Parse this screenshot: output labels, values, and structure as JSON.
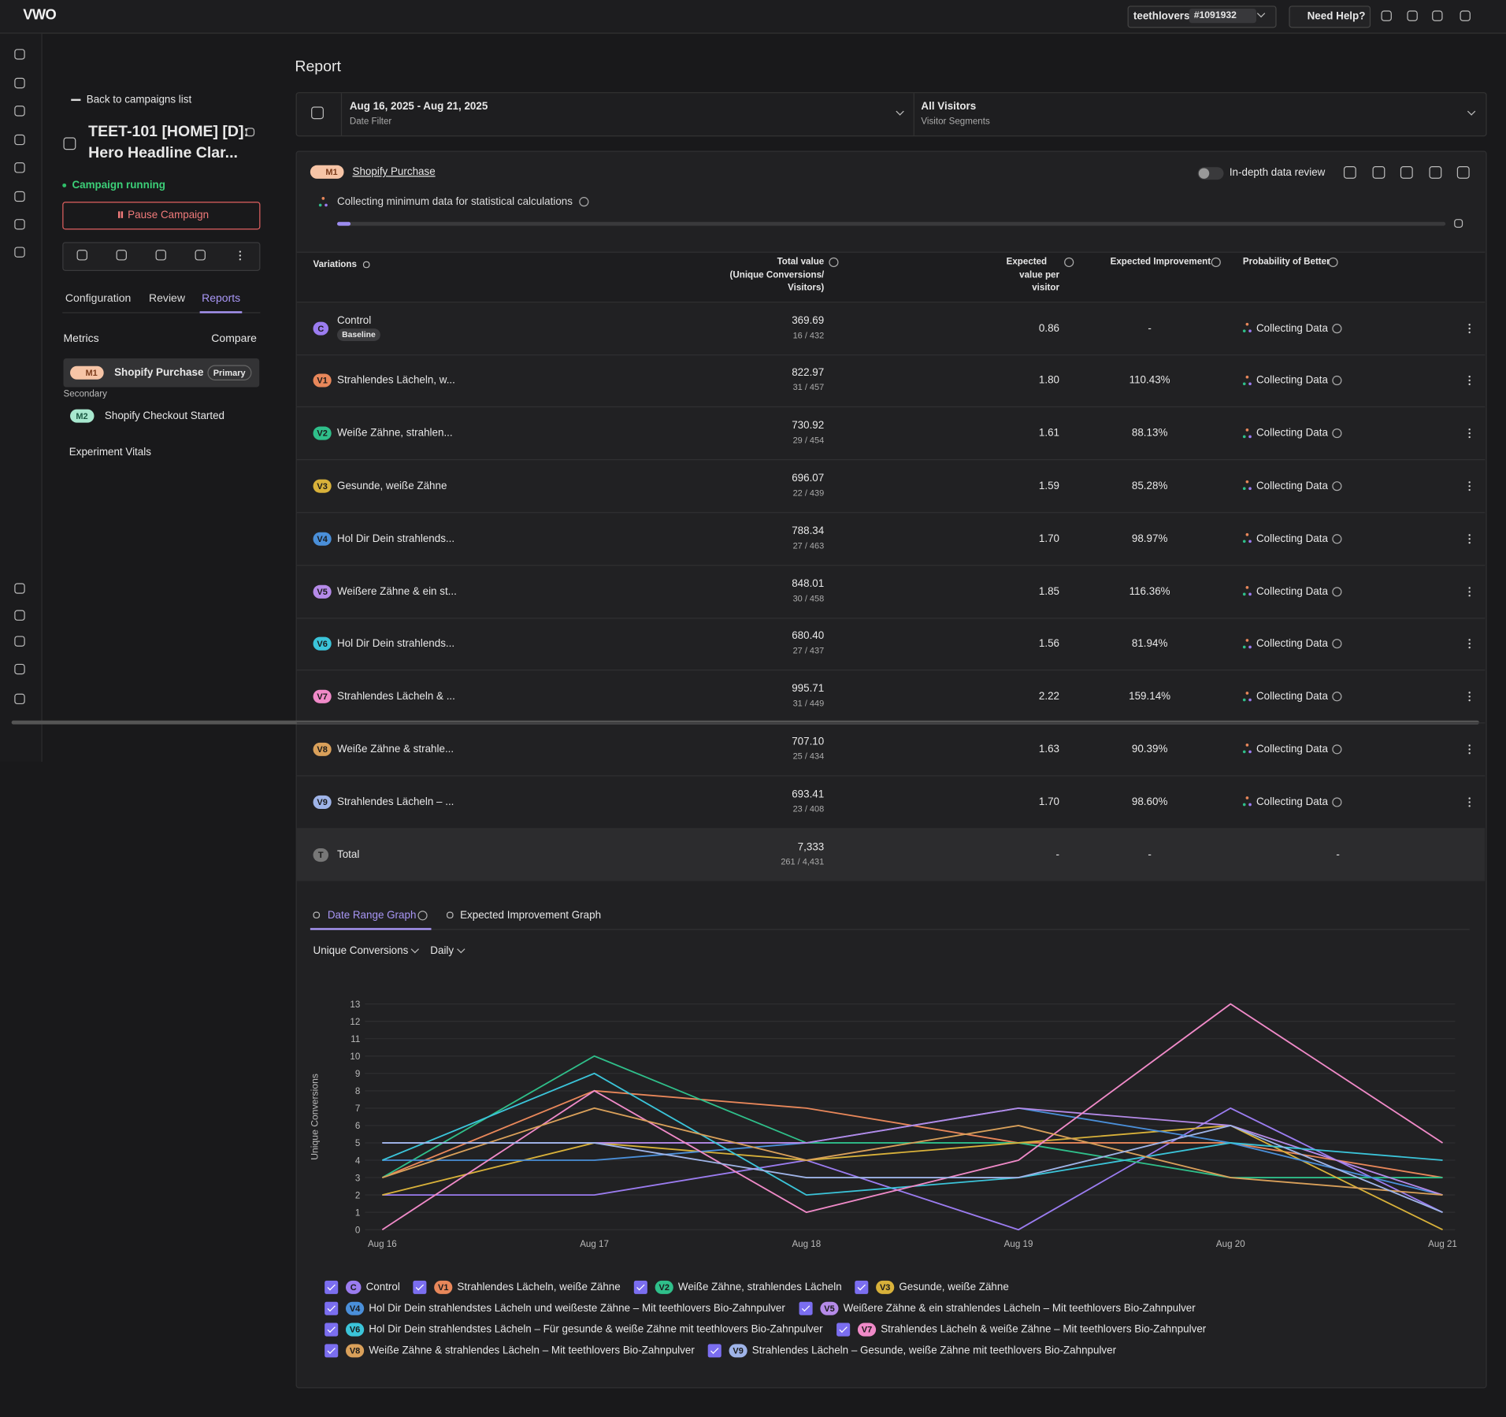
{
  "topbar": {
    "logo": "VWO",
    "account": "teethlovers",
    "account_id": "#1091932",
    "help": "Need Help?"
  },
  "sidebar": {
    "back": "Back to campaigns list",
    "campaign_title_lines": [
      "TEET-101 [HOME] [D]:",
      "Hero Headline Clar..."
    ],
    "status": "Campaign running",
    "pause": "Pause Campaign",
    "tabs": [
      "Configuration",
      "Review",
      "Reports"
    ],
    "metrics_label": "Metrics",
    "compare": "Compare",
    "primary_metric": {
      "badge": "M1",
      "name": "Shopify Purchase",
      "tag": "Primary"
    },
    "secondary_label": "Secondary",
    "secondary_metric": {
      "badge": "M2",
      "name": "Shopify Checkout Started"
    },
    "vitals": "Experiment Vitals"
  },
  "report": {
    "title": "Report",
    "date_filter": {
      "value": "Aug 16, 2025 - Aug 21, 2025",
      "label": "Date Filter"
    },
    "segment": {
      "value": "All Visitors",
      "label": "Visitor Segments"
    },
    "metric_badge": "M1",
    "metric_name": "Shopify Purchase",
    "toggle_label": "In-depth data review",
    "collecting_note": "Collecting minimum data for statistical calculations"
  },
  "table": {
    "headers": {
      "variations": "Variations",
      "total": [
        "Total value",
        "(Unique Conversions/",
        "Visitors)"
      ],
      "per_visitor": [
        "Expected",
        "value per",
        "visitor"
      ],
      "improvement": "Expected Improvement",
      "probability": "Probability of Better"
    },
    "rows": [
      {
        "badge": "C",
        "name": "Control",
        "tag": "Baseline",
        "total": "369.69",
        "counts": "16 / 432",
        "per_visitor": "0.86",
        "improvement": "-",
        "probability": "Collecting Data"
      },
      {
        "badge": "V1",
        "name": "Strahlendes Lächeln, w...",
        "total": "822.97",
        "counts": "31 / 457",
        "per_visitor": "1.80",
        "improvement": "110.43%",
        "probability": "Collecting Data"
      },
      {
        "badge": "V2",
        "name": "Weiße Zähne, strahlen...",
        "total": "730.92",
        "counts": "29 / 454",
        "per_visitor": "1.61",
        "improvement": "88.13%",
        "probability": "Collecting Data"
      },
      {
        "badge": "V3",
        "name": "Gesunde, weiße Zähne",
        "total": "696.07",
        "counts": "22 / 439",
        "per_visitor": "1.59",
        "improvement": "85.28%",
        "probability": "Collecting Data"
      },
      {
        "badge": "V4",
        "name": "Hol Dir Dein strahlends...",
        "total": "788.34",
        "counts": "27 / 463",
        "per_visitor": "1.70",
        "improvement": "98.97%",
        "probability": "Collecting Data"
      },
      {
        "badge": "V5",
        "name": "Weißere Zähne & ein st...",
        "total": "848.01",
        "counts": "30 / 458",
        "per_visitor": "1.85",
        "improvement": "116.36%",
        "probability": "Collecting Data"
      },
      {
        "badge": "V6",
        "name": "Hol Dir Dein strahlends...",
        "total": "680.40",
        "counts": "27 / 437",
        "per_visitor": "1.56",
        "improvement": "81.94%",
        "probability": "Collecting Data"
      },
      {
        "badge": "V7",
        "name": "Strahlendes Lächeln & ...",
        "total": "995.71",
        "counts": "31 / 449",
        "per_visitor": "2.22",
        "improvement": "159.14%",
        "probability": "Collecting Data"
      },
      {
        "badge": "V8",
        "name": "Weiße Zähne & strahle...",
        "total": "707.10",
        "counts": "25 / 434",
        "per_visitor": "1.63",
        "improvement": "90.39%",
        "probability": "Collecting Data"
      },
      {
        "badge": "V9",
        "name": "Strahlendes Lächeln – ...",
        "total": "693.41",
        "counts": "23 / 408",
        "per_visitor": "1.70",
        "improvement": "98.60%",
        "probability": "Collecting Data"
      },
      {
        "badge": "T",
        "name": "Total",
        "total": "7,333",
        "counts": "261 / 4,431",
        "per_visitor": "-",
        "improvement": "-",
        "probability": "-"
      }
    ]
  },
  "chart_tabs": [
    "Date Range Graph",
    "Expected Improvement Graph"
  ],
  "chart_controls": [
    "Unique Conversions",
    "Daily"
  ],
  "chart_data": {
    "type": "line",
    "y_label": "Unique Conversions",
    "x": [
      "Aug 16",
      "Aug 17",
      "Aug 18",
      "Aug 19",
      "Aug 20",
      "Aug 21"
    ],
    "ylim": [
      0,
      13
    ],
    "yticks": [
      0,
      1,
      2,
      3,
      4,
      5,
      6,
      7,
      8,
      9,
      10,
      11,
      12,
      13
    ],
    "grid": true,
    "series": [
      {
        "badge": "C",
        "name": "Control",
        "color": "#9b7cf0",
        "values": [
          2,
          2,
          4,
          0,
          7,
          1
        ]
      },
      {
        "badge": "V1",
        "name": "Strahlendes Lächeln, weiße Zähne",
        "color": "#e8875a",
        "values": [
          3,
          8,
          7,
          5,
          5,
          3
        ]
      },
      {
        "badge": "V2",
        "name": "Weiße Zähne, strahlendes Lächeln",
        "color": "#2fbf8a",
        "values": [
          3,
          10,
          5,
          5,
          3,
          3
        ]
      },
      {
        "badge": "V3",
        "name": "Gesunde, weiße Zähne",
        "color": "#d8b13a",
        "values": [
          2,
          5,
          4,
          5,
          6,
          0
        ]
      },
      {
        "badge": "V4",
        "name": "Hol Dir Dein strahlendstes Lächeln und weißeste Zähne – Mit teethlovers Bio-Zahnpulver",
        "color": "#4a8fd9",
        "values": [
          4,
          4,
          5,
          7,
          5,
          2
        ]
      },
      {
        "badge": "V5",
        "name": "Weißere Zähne & ein strahlendes Lächeln – Mit teethlovers Bio-Zahnpulver",
        "color": "#b58ae8",
        "values": [
          5,
          5,
          5,
          7,
          6,
          2
        ]
      },
      {
        "badge": "V6",
        "name": "Hol Dir Dein strahlendstes Lächeln – Für gesunde & weiße Zähne mit teethlovers Bio-Zahnpulver",
        "color": "#3bc4d9",
        "values": [
          4,
          9,
          2,
          3,
          5,
          4
        ]
      },
      {
        "badge": "V7",
        "name": "Strahlendes Lächeln & weiße Zähne – Mit teethlovers Bio-Zahnpulver",
        "color": "#f08ac8",
        "values": [
          0,
          8,
          1,
          4,
          13,
          5
        ]
      },
      {
        "badge": "V8",
        "name": "Weiße Zähne & strahlendes Lächeln – Mit teethlovers Bio-Zahnpulver",
        "color": "#d9a05a",
        "values": [
          3,
          7,
          4,
          6,
          3,
          2
        ]
      },
      {
        "badge": "V9",
        "name": "Strahlendes Lächeln – Gesunde, weiße Zähne mit teethlovers Bio-Zahnpulver",
        "color": "#9fb4e8",
        "values": [
          5,
          5,
          3,
          3,
          6,
          1
        ]
      }
    ]
  }
}
